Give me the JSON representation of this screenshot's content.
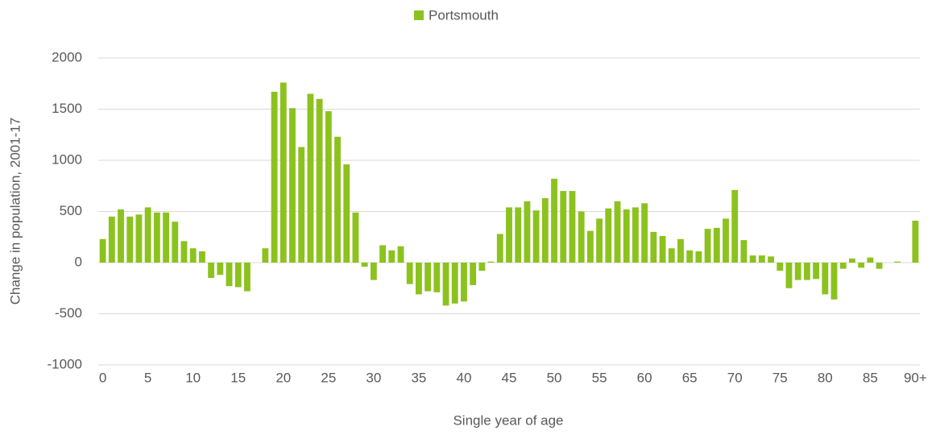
{
  "chart_data": {
    "type": "bar",
    "x_label": "Single year of age",
    "y_label": "Change in population, 2001-17",
    "legend_position": "top",
    "grid": true,
    "ylim": [
      -1000,
      2000
    ],
    "yticks": [
      -1000,
      -500,
      0,
      500,
      1000,
      1500,
      2000
    ],
    "categories": [
      "0",
      null,
      null,
      null,
      null,
      "5",
      null,
      null,
      null,
      null,
      "10",
      null,
      null,
      null,
      null,
      "15",
      null,
      null,
      null,
      null,
      "20",
      null,
      null,
      null,
      null,
      "25",
      null,
      null,
      null,
      null,
      "30",
      null,
      null,
      null,
      null,
      "35",
      null,
      null,
      null,
      null,
      "40",
      null,
      null,
      null,
      null,
      "45",
      null,
      null,
      null,
      null,
      "50",
      null,
      null,
      null,
      null,
      "55",
      null,
      null,
      null,
      null,
      "60",
      null,
      null,
      null,
      null,
      "65",
      null,
      null,
      null,
      null,
      "70",
      null,
      null,
      null,
      null,
      "75",
      null,
      null,
      null,
      null,
      "80",
      null,
      null,
      null,
      null,
      "85",
      null,
      null,
      null,
      null,
      "90+"
    ],
    "series": [
      {
        "name": "Portsmouth",
        "color": "#8cc21e",
        "values": [
          230,
          450,
          520,
          450,
          470,
          540,
          490,
          490,
          400,
          210,
          140,
          110,
          -150,
          -120,
          -230,
          -240,
          -280,
          0,
          140,
          1670,
          1760,
          1510,
          1130,
          1650,
          1600,
          1480,
          1230,
          960,
          490,
          -40,
          -170,
          170,
          120,
          160,
          -210,
          -310,
          -280,
          -290,
          -420,
          -400,
          -380,
          -220,
          -80,
          10,
          280,
          540,
          540,
          600,
          510,
          630,
          820,
          700,
          700,
          500,
          310,
          430,
          530,
          600,
          520,
          540,
          580,
          300,
          260,
          140,
          230,
          120,
          110,
          330,
          340,
          430,
          710,
          220,
          70,
          70,
          60,
          -80,
          -250,
          -170,
          -170,
          -160,
          -310,
          -360,
          -60,
          40,
          -50,
          50,
          -60,
          0,
          10,
          0,
          410
        ]
      }
    ]
  }
}
